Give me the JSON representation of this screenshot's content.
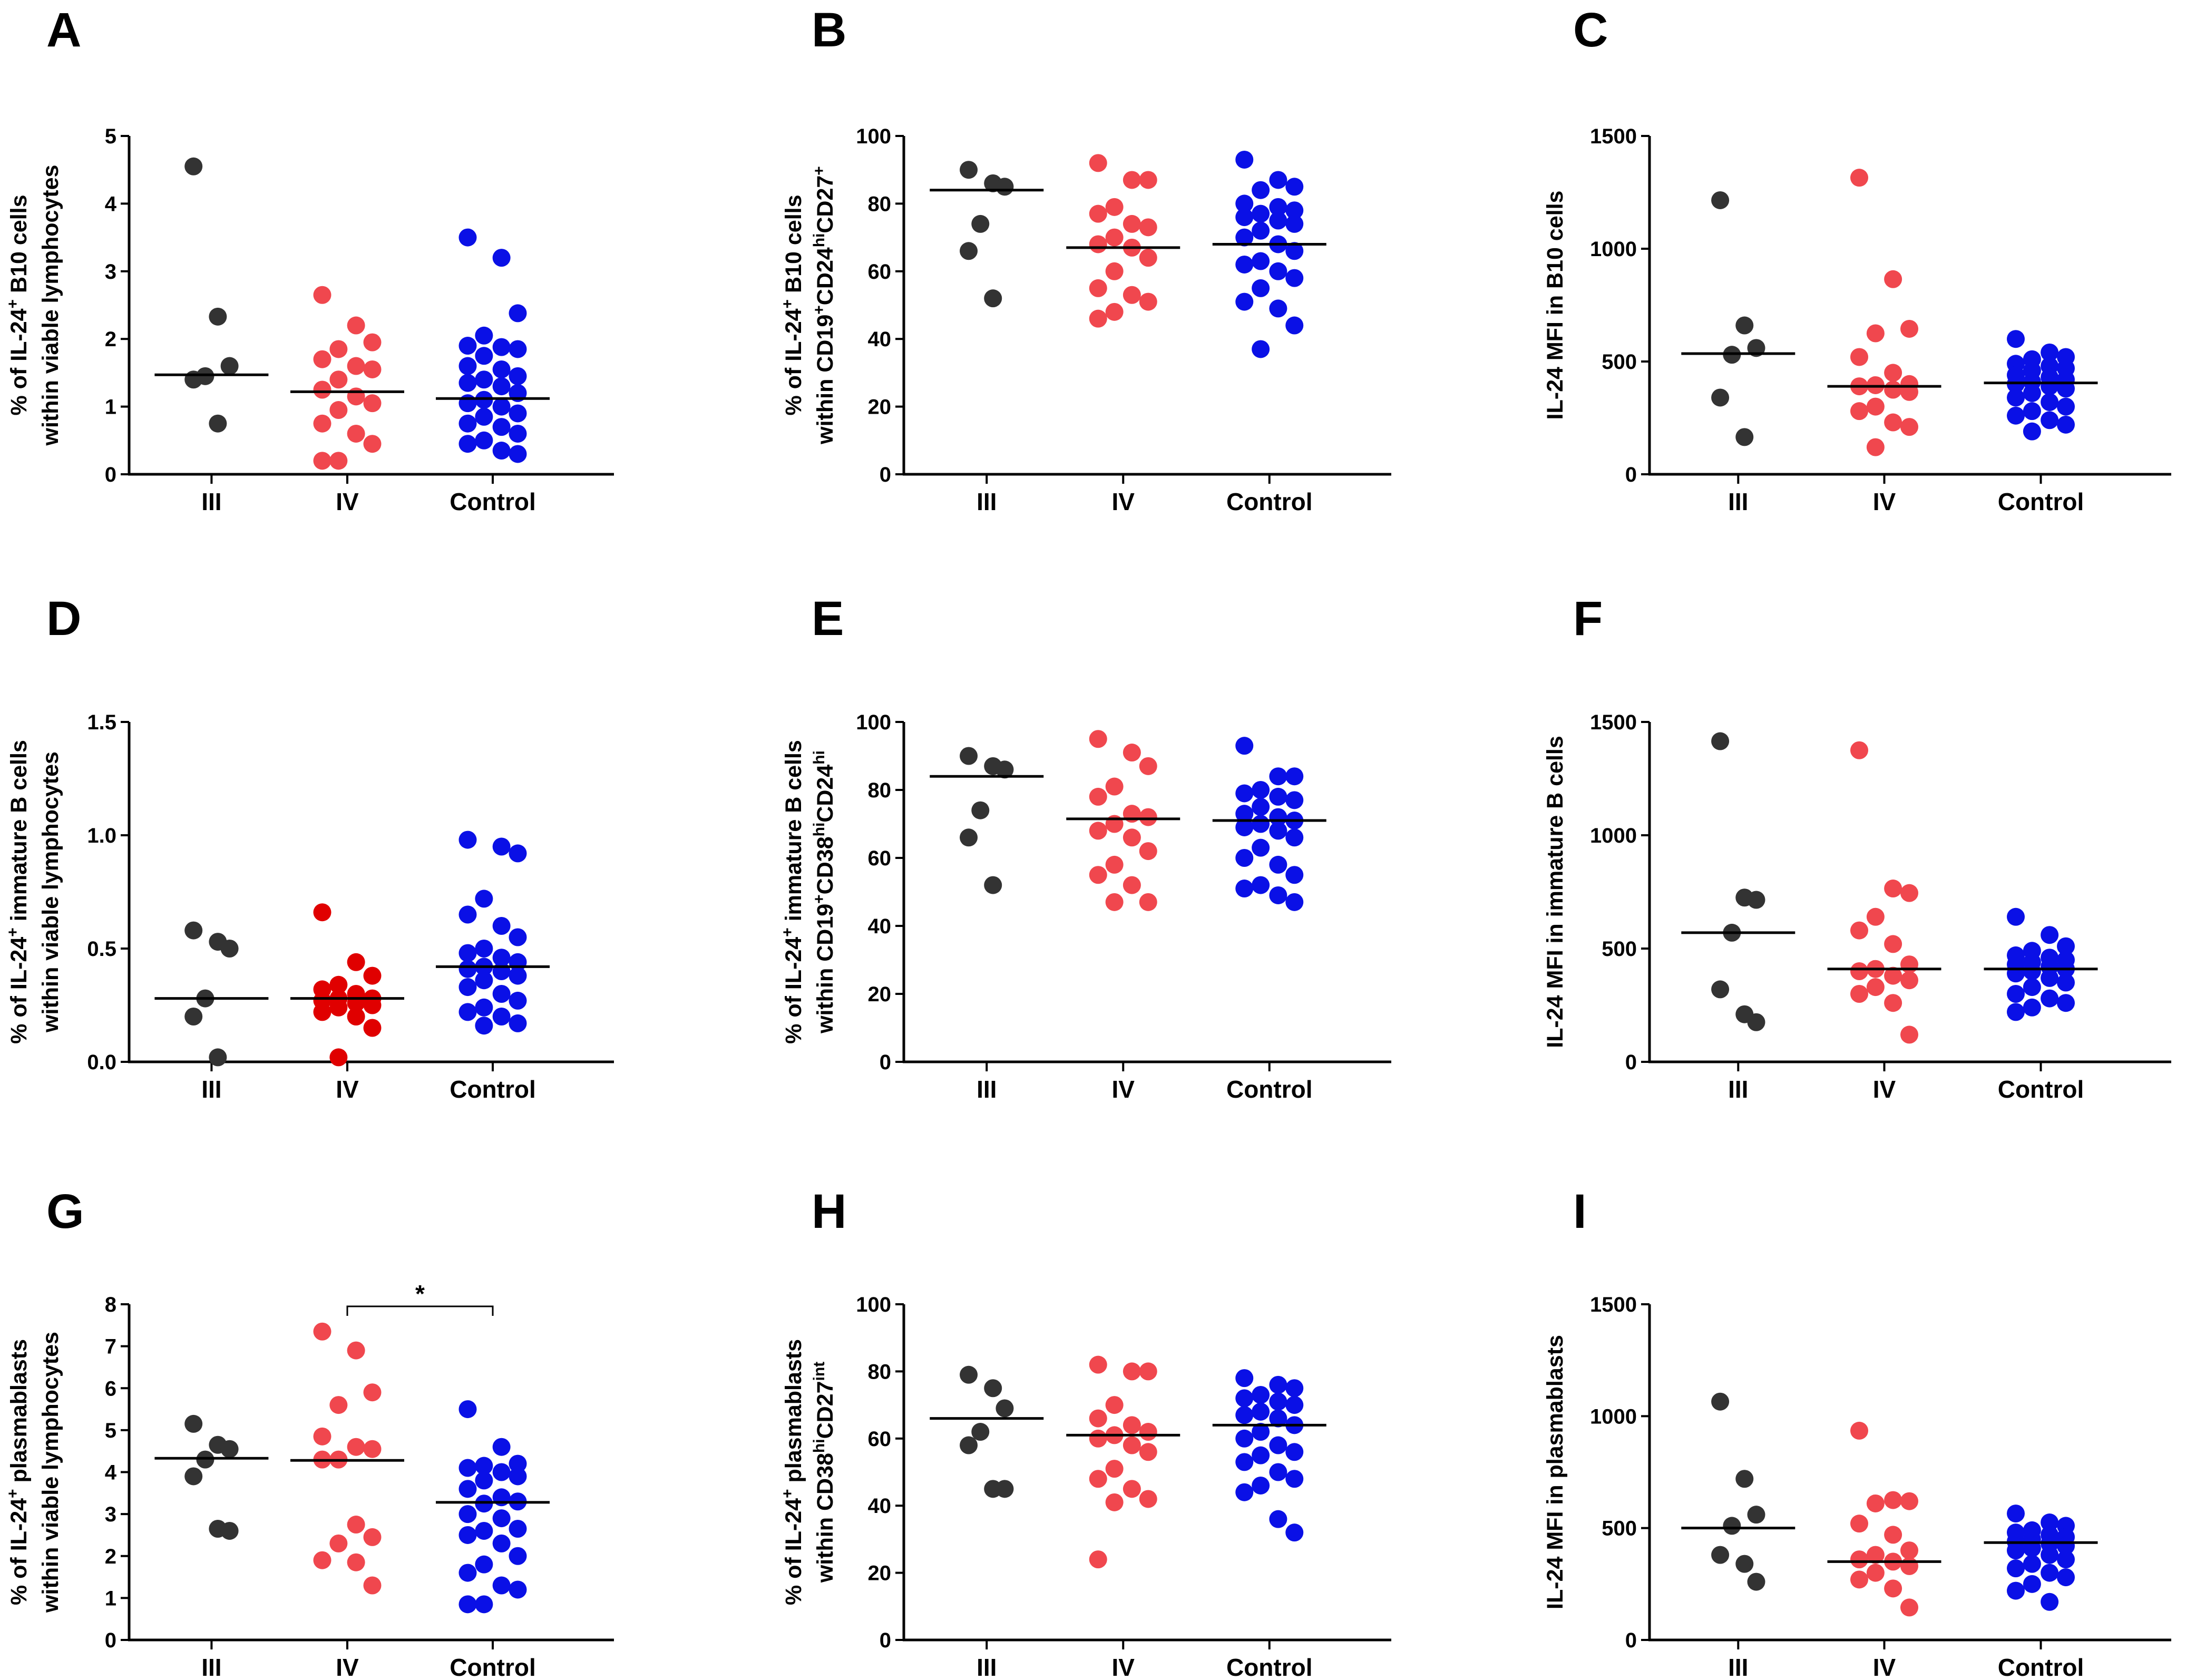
{
  "colors": {
    "III": "#333333",
    "IV": "#f0474e",
    "Control": "#0a10e6",
    "IV_dark": "#e00000",
    "axis": "#000000"
  },
  "chart_data": [
    {
      "type": "scatter",
      "panel": "A",
      "ylabel_lines": [
        [
          {
            "t": "% of IL-24"
          },
          {
            "t": "+",
            "sup": true
          },
          {
            "t": " B10 cells"
          }
        ],
        [
          {
            "t": "within viable lymphocytes"
          }
        ]
      ],
      "categories": [
        "III",
        "IV",
        "Control"
      ],
      "ylim": [
        0,
        5
      ],
      "ticks": [
        "0",
        "1",
        "2",
        "3",
        "4",
        "5"
      ],
      "series": [
        {
          "name": "III",
          "values": [
            4.55,
            2.33,
            1.6,
            1.45,
            1.4,
            0.75
          ]
        },
        {
          "name": "IV",
          "values": [
            2.65,
            2.2,
            1.95,
            1.85,
            1.7,
            1.6,
            1.55,
            1.4,
            1.25,
            1.15,
            1.05,
            0.95,
            0.75,
            0.6,
            0.45,
            0.2,
            0.2
          ]
        },
        {
          "name": "Control",
          "values": [
            3.5,
            3.2,
            2.38,
            2.05,
            1.9,
            1.88,
            1.85,
            1.75,
            1.6,
            1.55,
            1.45,
            1.4,
            1.35,
            1.3,
            1.2,
            1.1,
            1.05,
            1.0,
            0.9,
            0.85,
            0.75,
            0.7,
            0.6,
            0.5,
            0.45,
            0.35,
            0.3
          ]
        }
      ],
      "medians": [
        1.47,
        1.22,
        1.12
      ]
    },
    {
      "type": "scatter",
      "panel": "B",
      "ylabel_lines": [
        [
          {
            "t": "% of IL-24"
          },
          {
            "t": "+",
            "sup": true
          },
          {
            "t": " B10 cells"
          }
        ],
        [
          {
            "t": "within CD19"
          },
          {
            "t": "+",
            "sup": true
          },
          {
            "t": "CD24"
          },
          {
            "t": "hi",
            "sup": true
          },
          {
            "t": "CD27"
          },
          {
            "t": "+",
            "sup": true
          }
        ]
      ],
      "categories": [
        "III",
        "IV",
        "Control"
      ],
      "ylim": [
        0,
        100
      ],
      "ticks": [
        "0",
        "20",
        "40",
        "60",
        "80",
        "100"
      ],
      "series": [
        {
          "name": "III",
          "values": [
            90,
            86,
            85,
            74,
            66,
            52
          ]
        },
        {
          "name": "IV",
          "values": [
            92,
            87,
            87,
            79,
            77,
            74,
            73,
            70,
            68,
            67,
            64,
            60,
            55,
            53,
            51,
            48,
            46
          ]
        },
        {
          "name": "Control",
          "values": [
            93,
            87,
            85,
            84,
            80,
            79,
            78,
            77,
            76,
            75,
            74,
            72,
            70,
            68,
            66,
            63,
            62,
            60,
            58,
            55,
            51,
            49,
            44,
            37
          ]
        }
      ],
      "medians": [
        84,
        67,
        68
      ]
    },
    {
      "type": "scatter",
      "panel": "C",
      "ylabel_lines": [
        [
          {
            "t": "IL-24 MFI in B10 cells"
          }
        ]
      ],
      "categories": [
        "III",
        "IV",
        "Control"
      ],
      "ylim": [
        0,
        1500
      ],
      "ticks": [
        "0",
        "500",
        "1000",
        "1500"
      ],
      "series": [
        {
          "name": "III",
          "values": [
            1215,
            660,
            560,
            530,
            340,
            165
          ]
        },
        {
          "name": "IV",
          "values": [
            1315,
            865,
            645,
            625,
            520,
            450,
            400,
            395,
            390,
            375,
            365,
            300,
            280,
            230,
            210,
            120
          ]
        },
        {
          "name": "Control",
          "values": [
            600,
            540,
            520,
            510,
            490,
            480,
            470,
            460,
            440,
            430,
            420,
            410,
            400,
            390,
            380,
            360,
            340,
            320,
            300,
            280,
            260,
            240,
            220,
            190
          ]
        }
      ],
      "medians": [
        535,
        390,
        405
      ]
    },
    {
      "type": "scatter",
      "panel": "D",
      "ylabel_lines": [
        [
          {
            "t": "% of IL-24"
          },
          {
            "t": "+",
            "sup": true
          },
          {
            "t": " immature B cells"
          }
        ],
        [
          {
            "t": "within viable lymphocytes"
          }
        ]
      ],
      "categories": [
        "III",
        "IV",
        "Control"
      ],
      "ylim": [
        0,
        1.5
      ],
      "ticks": [
        "0.0",
        "0.5",
        "1.0",
        "1.5"
      ],
      "series": [
        {
          "name": "III",
          "values": [
            0.58,
            0.53,
            0.5,
            0.28,
            0.2,
            0.02
          ]
        },
        {
          "name": "IV_dark",
          "values": [
            0.66,
            0.44,
            0.38,
            0.34,
            0.32,
            0.3,
            0.28,
            0.28,
            0.27,
            0.26,
            0.25,
            0.24,
            0.22,
            0.2,
            0.15,
            0.02
          ]
        },
        {
          "name": "Control",
          "values": [
            0.98,
            0.95,
            0.92,
            0.72,
            0.65,
            0.6,
            0.55,
            0.5,
            0.48,
            0.46,
            0.44,
            0.42,
            0.41,
            0.4,
            0.38,
            0.36,
            0.33,
            0.3,
            0.27,
            0.24,
            0.22,
            0.2,
            0.17,
            0.16
          ]
        }
      ],
      "medians": [
        0.28,
        0.28,
        0.42
      ]
    },
    {
      "type": "scatter",
      "panel": "E",
      "ylabel_lines": [
        [
          {
            "t": "% of IL-24"
          },
          {
            "t": "+",
            "sup": true
          },
          {
            "t": " immature  B cells"
          }
        ],
        [
          {
            "t": "within CD19"
          },
          {
            "t": "+",
            "sup": true
          },
          {
            "t": "CD38"
          },
          {
            "t": "hi",
            "sup": true
          },
          {
            "t": "CD24"
          },
          {
            "t": "hi",
            "sup": true
          }
        ]
      ],
      "categories": [
        "III",
        "IV",
        "Control"
      ],
      "ylim": [
        0,
        100
      ],
      "ticks": [
        "0",
        "20",
        "40",
        "60",
        "80",
        "100"
      ],
      "series": [
        {
          "name": "III",
          "values": [
            90,
            87,
            86,
            74,
            66,
            52
          ]
        },
        {
          "name": "IV",
          "values": [
            95,
            91,
            87,
            81,
            78,
            73,
            72,
            70,
            68,
            66,
            62,
            58,
            55,
            52,
            47,
            47
          ]
        },
        {
          "name": "Control",
          "values": [
            93,
            84,
            84,
            80,
            79,
            78,
            77,
            75,
            73,
            72,
            71,
            70,
            69,
            68,
            66,
            63,
            60,
            58,
            55,
            52,
            51,
            49,
            47
          ]
        }
      ],
      "medians": [
        84,
        71.5,
        71
      ]
    },
    {
      "type": "scatter",
      "panel": "F",
      "ylabel_lines": [
        [
          {
            "t": "IL-24 MFI in immature B cells"
          }
        ]
      ],
      "categories": [
        "III",
        "IV",
        "Control"
      ],
      "ylim": [
        0,
        1500
      ],
      "ticks": [
        "0",
        "500",
        "1000",
        "1500"
      ],
      "series": [
        {
          "name": "III",
          "values": [
            1415,
            725,
            715,
            570,
            320,
            210,
            175
          ]
        },
        {
          "name": "IV",
          "values": [
            1375,
            765,
            745,
            640,
            580,
            520,
            430,
            410,
            400,
            380,
            360,
            330,
            300,
            260,
            120
          ]
        },
        {
          "name": "Control",
          "values": [
            640,
            560,
            510,
            490,
            470,
            460,
            450,
            440,
            430,
            420,
            410,
            400,
            390,
            370,
            350,
            330,
            300,
            280,
            260,
            240,
            220
          ]
        }
      ],
      "medians": [
        570,
        410,
        410
      ]
    },
    {
      "type": "scatter",
      "panel": "G",
      "ylabel_lines": [
        [
          {
            "t": "% of IL-24"
          },
          {
            "t": "+",
            "sup": true
          },
          {
            "t": " plasmablasts"
          }
        ],
        [
          {
            "t": "within viable lymphocytes"
          }
        ]
      ],
      "categories": [
        "III",
        "IV",
        "Control"
      ],
      "ylim": [
        0,
        8
      ],
      "ticks": [
        "0",
        "1",
        "2",
        "3",
        "4",
        "5",
        "6",
        "7",
        "8"
      ],
      "series": [
        {
          "name": "III",
          "values": [
            5.15,
            4.65,
            4.55,
            4.3,
            3.9,
            2.65,
            2.6
          ]
        },
        {
          "name": "IV",
          "values": [
            7.35,
            6.9,
            5.9,
            5.6,
            4.85,
            4.6,
            4.55,
            4.3,
            4.3,
            2.75,
            2.45,
            2.3,
            1.9,
            1.85,
            1.3
          ]
        },
        {
          "name": "Control",
          "values": [
            5.5,
            4.6,
            4.2,
            4.15,
            4.1,
            4.0,
            3.9,
            3.8,
            3.6,
            3.4,
            3.3,
            3.25,
            3.0,
            2.9,
            2.65,
            2.6,
            2.5,
            2.3,
            2.0,
            1.8,
            1.6,
            1.3,
            1.2,
            0.85,
            0.85
          ]
        }
      ],
      "medians": [
        4.33,
        4.28,
        3.28
      ],
      "significance": {
        "from": "IV",
        "to": "Control",
        "label": "*",
        "y": 7.95
      }
    },
    {
      "type": "scatter",
      "panel": "H",
      "ylabel_lines": [
        [
          {
            "t": "% of IL-24"
          },
          {
            "t": "+",
            "sup": true
          },
          {
            "t": " plasmablasts"
          }
        ],
        [
          {
            "t": "within CD38"
          },
          {
            "t": "hi",
            "sup": true
          },
          {
            "t": "CD27"
          },
          {
            "t": "int",
            "sup": true
          }
        ]
      ],
      "categories": [
        "III",
        "IV",
        "Control"
      ],
      "ylim": [
        0,
        100
      ],
      "ticks": [
        "0",
        "20",
        "40",
        "60",
        "80",
        "100"
      ],
      "series": [
        {
          "name": "III",
          "values": [
            79,
            75,
            69,
            62,
            58,
            45,
            45
          ]
        },
        {
          "name": "IV",
          "values": [
            82,
            80,
            80,
            70,
            66,
            64,
            62,
            61,
            60,
            58,
            56,
            51,
            48,
            45,
            42,
            41,
            24
          ]
        },
        {
          "name": "Control",
          "values": [
            78,
            76,
            75,
            73,
            72,
            71,
            70,
            68,
            67,
            66,
            64,
            62,
            60,
            58,
            56,
            55,
            53,
            50,
            48,
            46,
            44,
            36,
            32
          ]
        }
      ],
      "medians": [
        66,
        61,
        64
      ]
    },
    {
      "type": "scatter",
      "panel": "I",
      "ylabel_lines": [
        [
          {
            "t": "IL-24 MFI in plasmablasts"
          }
        ]
      ],
      "categories": [
        "III",
        "IV",
        "Control"
      ],
      "ylim": [
        0,
        1500
      ],
      "ticks": [
        "0",
        "500",
        "1000",
        "1500"
      ],
      "series": [
        {
          "name": "III",
          "values": [
            1065,
            720,
            560,
            510,
            380,
            340,
            260
          ]
        },
        {
          "name": "IV",
          "values": [
            935,
            625,
            620,
            610,
            520,
            470,
            400,
            380,
            360,
            350,
            330,
            300,
            270,
            230,
            145
          ]
        },
        {
          "name": "Control",
          "values": [
            565,
            525,
            510,
            490,
            480,
            470,
            460,
            450,
            440,
            430,
            420,
            410,
            400,
            380,
            360,
            340,
            320,
            300,
            280,
            250,
            220,
            170
          ]
        }
      ],
      "medians": [
        500,
        350,
        435
      ]
    }
  ]
}
